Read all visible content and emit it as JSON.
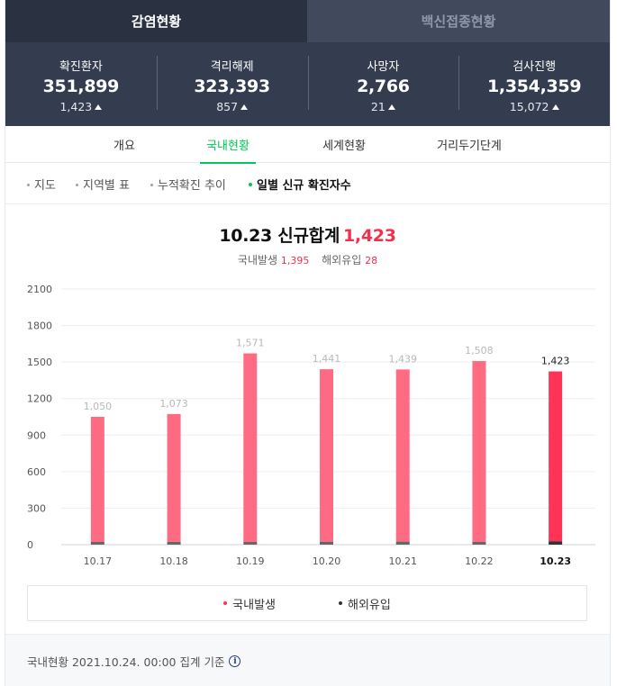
{
  "tabs": [
    {
      "label": "감염현황",
      "active": true
    },
    {
      "label": "백신접종현황",
      "active": false
    }
  ],
  "stats": [
    {
      "label": "확진환자",
      "value": "351,899",
      "delta": "1,423"
    },
    {
      "label": "격리해제",
      "value": "323,393",
      "delta": "857"
    },
    {
      "label": "사망자",
      "value": "2,766",
      "delta": "21"
    },
    {
      "label": "검사진행",
      "value": "1,354,359",
      "delta": "15,072"
    }
  ],
  "subtabs": [
    {
      "label": "개요",
      "active": false
    },
    {
      "label": "국내현황",
      "active": true
    },
    {
      "label": "세계현황",
      "active": false
    },
    {
      "label": "거리두기단계",
      "active": false
    }
  ],
  "filters": [
    {
      "label": "지도",
      "active": false
    },
    {
      "label": "지역별 표",
      "active": false
    },
    {
      "label": "누적확진 추이",
      "active": false
    },
    {
      "label": "일별 신규 확진자수",
      "active": true
    }
  ],
  "chart_header": {
    "title": "10.23 신규합계",
    "total": "1,423",
    "domestic_label": "국내발생",
    "domestic_value": "1,395",
    "imported_label": "해외유입",
    "imported_value": "28"
  },
  "chart_data": {
    "type": "bar",
    "categories": [
      "10.17",
      "10.18",
      "10.19",
      "10.20",
      "10.21",
      "10.22",
      "10.23"
    ],
    "series": [
      {
        "name": "국내발생",
        "values": [
          1028,
          1050,
          1549,
          1417,
          1414,
          1487,
          1395
        ]
      },
      {
        "name": "해외유입",
        "values": [
          22,
          23,
          22,
          24,
          25,
          21,
          28
        ]
      }
    ],
    "totals": [
      "1,050",
      "1,073",
      "1,571",
      "1,441",
      "1,439",
      "1,508",
      "1,423"
    ],
    "highlight_index": 6,
    "yticks": [
      "0",
      "300",
      "600",
      "900",
      "1200",
      "1500",
      "1800",
      "2100"
    ],
    "ylim": [
      0,
      2100
    ],
    "grid": true,
    "colors": {
      "domestic": "#ff6b82",
      "domestic_highlight": "#ff3355",
      "imported": "#666666",
      "imported_highlight": "#333333",
      "label_muted": "#b8b8b8",
      "label_highlight": "#222222"
    }
  },
  "legend": [
    {
      "label": "국내발생",
      "color": "#ff3355"
    },
    {
      "label": "해외유입",
      "color": "#333333"
    }
  ],
  "footer": {
    "text": "국내현황 2021.10.24. 00:00 집계 기준",
    "icon": "info-icon"
  }
}
